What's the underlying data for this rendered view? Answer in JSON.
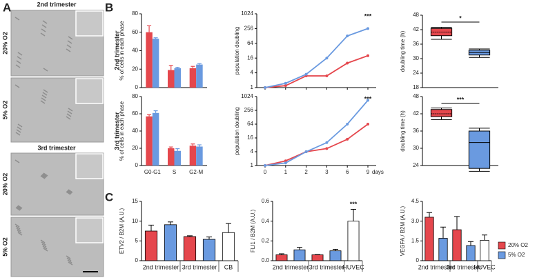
{
  "panel_a": {
    "label": "A",
    "sections": [
      {
        "title": "2nd trimester",
        "images": [
          "20% O2",
          "5% O2"
        ]
      },
      {
        "title": "3rd trimester",
        "images": [
          "20% O2",
          "5% O2"
        ]
      }
    ]
  },
  "panel_b": {
    "label": "B",
    "row_labels": [
      "2nd trimester",
      "3rd trimester"
    ]
  },
  "panel_c": {
    "label": "C"
  },
  "chart_data": [
    {
      "type": "bar",
      "ylabel": "% of cells in each phase",
      "categories": [
        null,
        null,
        null
      ],
      "series": [
        {
          "name": "20% O2",
          "color": "#e5474d",
          "values": [
            60,
            19,
            21
          ],
          "errors": [
            7,
            5,
            2
          ]
        },
        {
          "name": "5% O2",
          "color": "#6a9ae0",
          "values": [
            53,
            21,
            25
          ],
          "errors": [
            1,
            1,
            1
          ]
        }
      ],
      "ylim": [
        0,
        80
      ],
      "yticks": [
        0,
        20,
        40,
        60,
        80
      ]
    },
    {
      "type": "line",
      "ylabel": "population doubling",
      "categories": [
        null,
        null,
        null,
        null,
        null,
        null
      ],
      "series": [
        {
          "name": "20% O2",
          "color": "#e5474d",
          "values": [
            1,
            1.2,
            3,
            3,
            10,
            20
          ]
        },
        {
          "name": "5% O2",
          "color": "#6a9ae0",
          "values": [
            1,
            1.5,
            3.5,
            16,
            128,
            256
          ]
        }
      ],
      "log_base": 2,
      "ylim": [
        1,
        1024
      ],
      "yticks": [
        1,
        4,
        16,
        64,
        256,
        1024
      ],
      "annotation": "***"
    },
    {
      "type": "box",
      "ylabel": "doubling time (h)",
      "boxes": [
        {
          "color": "#e5474d",
          "min": 38,
          "q1": 39.5,
          "median": 41,
          "q3": 42.5,
          "max": 43
        },
        {
          "color": "#6a9ae0",
          "min": 30.5,
          "q1": 31.5,
          "median": 32.5,
          "q3": 33.5,
          "max": 34
        }
      ],
      "ylim": [
        18,
        48
      ],
      "yticks": [
        18,
        24,
        30,
        36,
        42,
        48
      ],
      "annotation": "*"
    },
    {
      "type": "bar",
      "ylabel": "% of cells in each phase",
      "categories": [
        "G0-G1",
        "S",
        "G2-M"
      ],
      "series": [
        {
          "name": "20% O2",
          "color": "#e5474d",
          "values": [
            57,
            20,
            23
          ],
          "errors": [
            2,
            1.5,
            2
          ]
        },
        {
          "name": "5% O2",
          "color": "#6a9ae0",
          "values": [
            61,
            17,
            22
          ],
          "errors": [
            2.5,
            2.5,
            2
          ]
        }
      ],
      "ylim": [
        0,
        80
      ],
      "yticks": [
        0,
        20,
        40,
        60,
        80
      ]
    },
    {
      "type": "line",
      "ylabel": "population doubling",
      "categories": [
        "0",
        "1",
        "2",
        "3",
        "6",
        "9"
      ],
      "xlabel": "days",
      "series": [
        {
          "name": "20% O2",
          "color": "#e5474d",
          "values": [
            1,
            1.6,
            4,
            5.5,
            14,
            64
          ]
        },
        {
          "name": "5% O2",
          "color": "#6a9ae0",
          "values": [
            1,
            1.3,
            4,
            10,
            64,
            700
          ]
        }
      ],
      "log_base": 2,
      "ylim": [
        1,
        1024
      ],
      "yticks": [
        1,
        4,
        16,
        64,
        256,
        1024
      ],
      "annotation": "***"
    },
    {
      "type": "box",
      "ylabel": "doubling time (h)",
      "boxes": [
        {
          "color": "#e5474d",
          "min": 40,
          "q1": 41,
          "median": 42,
          "q3": 43.5,
          "max": 44
        },
        {
          "color": "#6a9ae0",
          "min": 22,
          "q1": 23,
          "median": 32,
          "q3": 36,
          "max": 37
        }
      ],
      "ylim": [
        24,
        48
      ],
      "yticks": [
        24,
        30,
        36,
        42,
        48
      ],
      "annotation": "***"
    },
    {
      "type": "bar",
      "ylabel": "ETV2 / B2M (A.U.)",
      "values": [
        7.5,
        9.1,
        6.1,
        5.4,
        7.1
      ],
      "errors": [
        1.5,
        0.7,
        0.2,
        0.6,
        2.3
      ],
      "colors": [
        "#e5474d",
        "#6a9ae0",
        "#e5474d",
        "#6a9ae0",
        "#ffffff"
      ],
      "groups": [
        "2nd trimester",
        "3rd trimester",
        "CB"
      ],
      "ylim": [
        0,
        15
      ],
      "yticks": [
        0,
        5,
        10,
        15
      ]
    },
    {
      "type": "bar",
      "ylabel": "FLI1 / B2M (A.U.)",
      "values": [
        0.06,
        0.11,
        0.06,
        0.1,
        0.4
      ],
      "errors": [
        0.01,
        0.025,
        0.003,
        0.015,
        0.12
      ],
      "colors": [
        "#e5474d",
        "#6a9ae0",
        "#e5474d",
        "#6a9ae0",
        "#ffffff"
      ],
      "groups": [
        "2nd trimester",
        "3rd trimester",
        "HUVEC"
      ],
      "ylim": [
        0,
        0.6
      ],
      "yticks": [
        {
          "value": 0,
          "label": "0.0"
        },
        0.2,
        0.4,
        0.6
      ],
      "annotation": "***"
    },
    {
      "type": "bar",
      "ylabel": "VEGFA / B2M (A.U.)",
      "values": [
        3.3,
        1.7,
        2.35,
        1.15,
        1.55
      ],
      "errors": [
        0.35,
        0.85,
        1.0,
        0.3,
        0.4
      ],
      "colors": [
        "#e5474d",
        "#6a9ae0",
        "#e5474d",
        "#6a9ae0",
        "#ffffff"
      ],
      "groups": [
        "2nd trimester",
        "3rd trimester",
        "HUVEC"
      ],
      "ylim": [
        0,
        4.5
      ],
      "yticks": [
        0,
        1.5,
        {
          "value": 3,
          "label": "3.0"
        },
        4.5
      ]
    }
  ]
}
